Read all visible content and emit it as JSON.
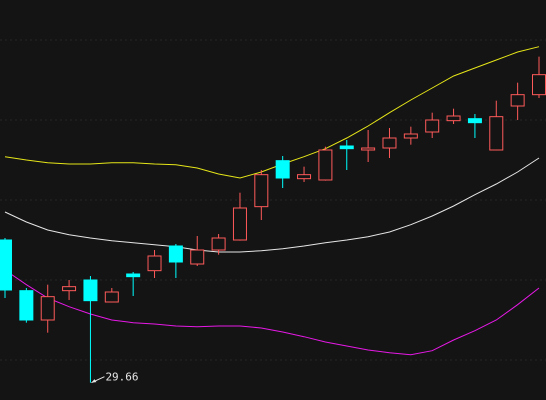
{
  "chart_data": {
    "type": "candlestick",
    "ylim": [
      29.4,
      35.4
    ],
    "up_color": "#ff5a5a",
    "down_color": "#00ffff",
    "open": [
      31.8,
      31.04,
      30.6,
      31.04,
      31.2,
      30.87,
      31.29,
      31.34,
      31.71,
      31.44,
      31.65,
      31.8,
      32.3,
      32.99,
      32.72,
      32.7,
      33.21,
      33.15,
      33.18,
      33.33,
      33.42,
      33.59,
      33.62,
      33.15,
      33.81,
      33.98
    ],
    "high": [
      31.83,
      31.08,
      31.13,
      31.2,
      31.26,
      31.08,
      31.32,
      31.65,
      31.74,
      31.86,
      31.89,
      32.51,
      32.85,
      33.06,
      32.9,
      33.2,
      33.3,
      33.45,
      33.48,
      33.5,
      33.71,
      33.77,
      33.69,
      33.89,
      34.16,
      34.55
    ],
    "low": [
      30.93,
      30.56,
      30.41,
      30.9,
      29.66,
      30.87,
      30.96,
      31.23,
      31.23,
      31.41,
      31.58,
      31.79,
      32.1,
      32.58,
      32.67,
      32.69,
      32.85,
      32.97,
      33.03,
      33.23,
      33.33,
      33.54,
      33.33,
      33.15,
      33.6,
      33.93
    ],
    "close": [
      31.05,
      30.6,
      30.95,
      31.1,
      30.89,
      31.02,
      31.25,
      31.56,
      31.47,
      31.65,
      31.83,
      32.28,
      32.78,
      32.73,
      32.78,
      33.15,
      33.17,
      33.18,
      33.33,
      33.39,
      33.6,
      33.66,
      33.56,
      33.65,
      33.98,
      34.28
    ],
    "bands": [
      {
        "color": "#e6e619",
        "values": [
          33.05,
          33.0,
          32.96,
          32.94,
          32.94,
          32.96,
          32.96,
          32.94,
          32.93,
          32.88,
          32.79,
          32.73,
          32.82,
          32.94,
          33.05,
          33.17,
          33.33,
          33.51,
          33.71,
          33.9,
          34.08,
          34.26,
          34.38,
          34.5,
          34.62,
          34.7
        ]
      },
      {
        "color": "#e6e6e6",
        "values": [
          32.22,
          32.07,
          31.95,
          31.88,
          31.83,
          31.79,
          31.76,
          31.73,
          31.7,
          31.65,
          31.62,
          31.62,
          31.64,
          31.67,
          31.71,
          31.76,
          31.8,
          31.85,
          31.92,
          32.03,
          32.16,
          32.31,
          32.48,
          32.64,
          32.82,
          33.03
        ]
      },
      {
        "color": "#e619e6",
        "values": [
          31.35,
          31.13,
          30.93,
          30.8,
          30.69,
          30.6,
          30.56,
          30.54,
          30.51,
          30.5,
          30.51,
          30.51,
          30.48,
          30.42,
          30.35,
          30.27,
          30.21,
          30.15,
          30.11,
          30.08,
          30.14,
          30.3,
          30.44,
          30.6,
          30.83,
          31.08
        ]
      }
    ],
    "annotation": "29.66"
  }
}
